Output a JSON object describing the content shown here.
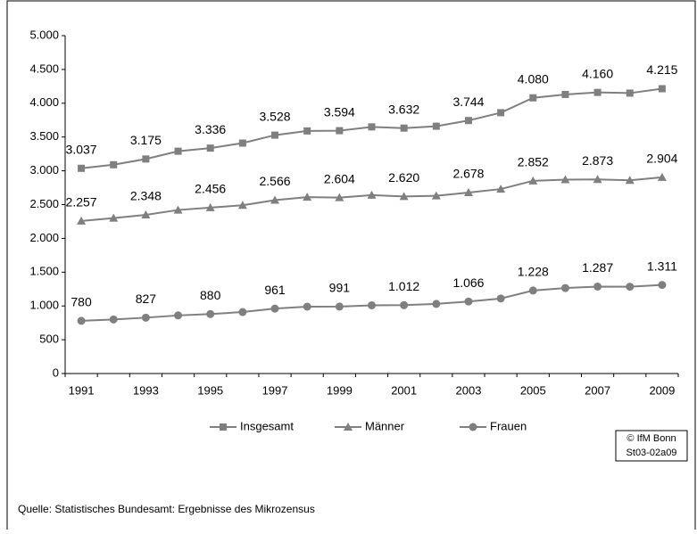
{
  "chart_data": {
    "type": "line",
    "categories": [
      "1991",
      null,
      "1993",
      null,
      "1995",
      null,
      "1997",
      null,
      "1999",
      null,
      "2001",
      null,
      "2003",
      null,
      "2005",
      null,
      "2007",
      null,
      "2009"
    ],
    "series": [
      {
        "name": "Insgesamt",
        "color": "#7f7f7f",
        "marker": "square",
        "values": [
          3037,
          3090,
          3175,
          3290,
          3336,
          3410,
          3528,
          3590,
          3594,
          3650,
          3632,
          3660,
          3744,
          3860,
          4080,
          4130,
          4160,
          4150,
          4215
        ],
        "value_labels": [
          "3.037",
          null,
          "3.175",
          null,
          "3.336",
          null,
          "3.528",
          null,
          "3.594",
          null,
          "3.632",
          null,
          "3.744",
          null,
          "4.080",
          null,
          "4.160",
          null,
          "4.215"
        ]
      },
      {
        "name": "Männer",
        "color": "#7f7f7f",
        "marker": "triangle",
        "values": [
          2257,
          2300,
          2348,
          2420,
          2456,
          2490,
          2566,
          2610,
          2604,
          2640,
          2620,
          2630,
          2678,
          2730,
          2852,
          2870,
          2873,
          2860,
          2904
        ],
        "value_labels": [
          "2.257",
          null,
          "2.348",
          null,
          "2.456",
          null,
          "2.566",
          null,
          "2.604",
          null,
          "2.620",
          null,
          "2.678",
          null,
          "2.852",
          null,
          "2.873",
          null,
          "2.904"
        ]
      },
      {
        "name": "Frauen",
        "color": "#7f7f7f",
        "marker": "circle",
        "values": [
          780,
          800,
          827,
          860,
          880,
          910,
          961,
          990,
          991,
          1010,
          1012,
          1030,
          1066,
          1110,
          1228,
          1265,
          1287,
          1285,
          1311
        ],
        "value_labels": [
          "780",
          null,
          "827",
          null,
          "880",
          null,
          "961",
          null,
          "991",
          null,
          "1.012",
          null,
          "1.066",
          null,
          "1.228",
          null,
          "1.287",
          null,
          "1.311"
        ]
      }
    ],
    "ylim": [
      0,
      5000
    ],
    "yticks": [
      0,
      500,
      {
        "value": 1000,
        "label": "1.000"
      },
      {
        "value": 1500,
        "label": "1.500"
      },
      {
        "value": 2000,
        "label": "2.000"
      },
      {
        "value": 2500,
        "label": "2.500"
      },
      {
        "value": 3000,
        "label": "3.000"
      },
      {
        "value": 3500,
        "label": "3.500"
      },
      {
        "value": 4000,
        "label": "4.000"
      },
      {
        "value": 4500,
        "label": "4.500"
      },
      {
        "value": 5000,
        "label": "5.000"
      }
    ],
    "grid": false,
    "legend": "bottom",
    "annotations": [
      "© IfM Bonn",
      "St03-02a09",
      "Quelle: Statistisches Bundesamt: Ergebnisse des Mikrozensus"
    ]
  }
}
